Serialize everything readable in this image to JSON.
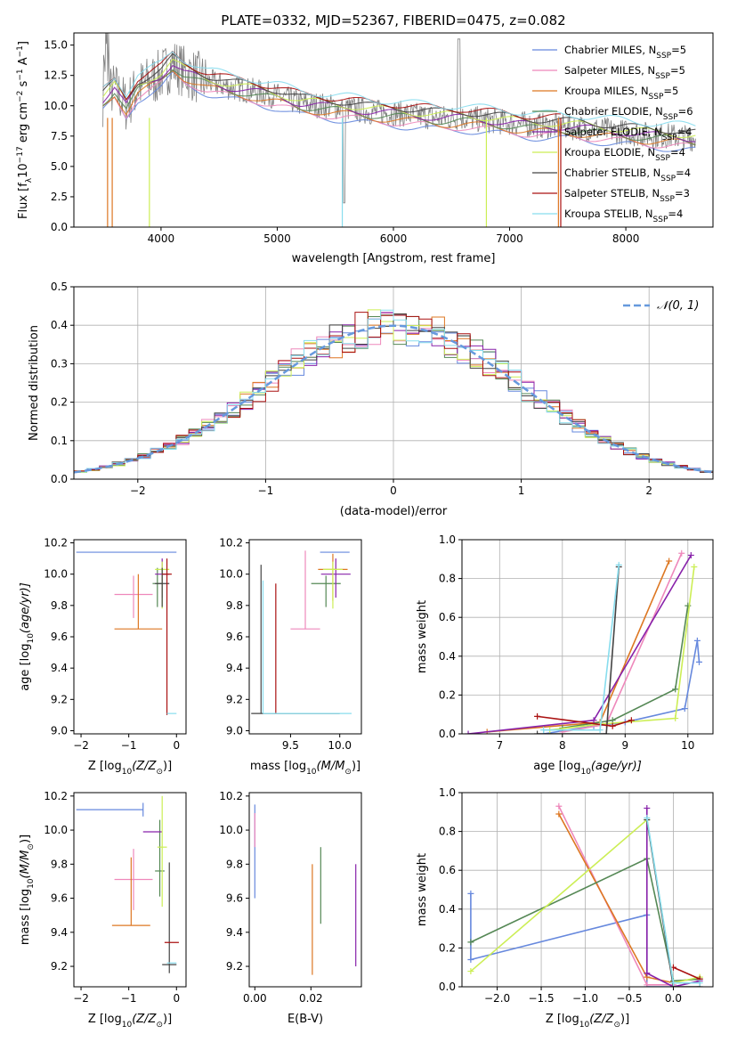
{
  "figure": {
    "title": "PLATE=0332, MJD=52367, FIBERID=0475, z=0.082"
  },
  "series_colors": [
    "#6688dd",
    "#ee88bb",
    "#dd7722",
    "#558855",
    "#8822aa",
    "#ccee55",
    "#444444",
    "#aa1111",
    "#88ddee"
  ],
  "chart_data": [
    {
      "id": "spectrum",
      "type": "line",
      "title": "PLATE=0332, MJD=52367, FIBERID=0475, z=0.082",
      "xlabel": "wavelength [Angstrom, rest frame]",
      "ylabel": "Flux [f",
      "ylabel_parts": [
        "Flux [f",
        "λ",
        "10",
        "−17",
        " erg cm",
        "−2",
        " s",
        "−1",
        " A",
        "−1",
        "]"
      ],
      "xlim": [
        3250,
        8750
      ],
      "ylim": [
        0,
        16
      ],
      "xticks": [
        4000,
        5000,
        6000,
        7000,
        8000
      ],
      "yticks": [
        0.0,
        2.5,
        5.0,
        7.5,
        10.0,
        12.5,
        15.0
      ],
      "ytick_labels": [
        "0.0",
        "2.5",
        "5.0",
        "7.5",
        "10.0",
        "12.5",
        "15.0"
      ],
      "legend_position": "top-right",
      "legend": [
        {
          "label": "Chabrier MILES, N",
          "sub": "SSP",
          "suffix": "=5"
        },
        {
          "label": "Salpeter MILES, N",
          "sub": "SSP",
          "suffix": "=5"
        },
        {
          "label": "Kroupa MILES, N",
          "sub": "SSP",
          "suffix": "=5"
        },
        {
          "label": "Chabrier ELODIE, N",
          "sub": "SSP",
          "suffix": "=6"
        },
        {
          "label": "Salpeter ELODIE, N",
          "sub": "SSP",
          "suffix": "=4"
        },
        {
          "label": "Kroupa ELODIE, N",
          "sub": "SSP",
          "suffix": "=4"
        },
        {
          "label": "Chabrier STELIB, N",
          "sub": "SSP",
          "suffix": "=4"
        },
        {
          "label": "Salpeter STELIB, N",
          "sub": "SSP",
          "suffix": "=3"
        },
        {
          "label": "Kroupa STELIB, N",
          "sub": "SSP",
          "suffix": "=4"
        }
      ],
      "data_series": {
        "x": [
          3500,
          3600,
          3700,
          3800,
          3900,
          4000,
          4100,
          4200,
          4400,
          4600,
          4800,
          5000,
          5200,
          5400,
          5600,
          5800,
          6000,
          6200,
          6400,
          6600,
          6800,
          7000,
          7200,
          7400,
          7600,
          7800,
          8000,
          8200,
          8400,
          8600
        ],
        "y": [
          10.5,
          11.5,
          10.0,
          11.5,
          12.0,
          12.5,
          13.5,
          12.8,
          12.0,
          11.5,
          11.2,
          10.8,
          10.2,
          10.0,
          9.8,
          9.5,
          9.4,
          9.2,
          9.0,
          9.0,
          8.8,
          8.6,
          8.4,
          8.3,
          8.2,
          8.0,
          7.8,
          7.6,
          7.5,
          7.3
        ]
      }
    },
    {
      "id": "residuals",
      "type": "line",
      "xlabel": "(data-model)/error",
      "ylabel": "Normed distribution",
      "xlim": [
        -2.5,
        2.5
      ],
      "ylim": [
        0,
        0.5
      ],
      "xticks": [
        -2,
        -1,
        0,
        1,
        2
      ],
      "xtick_labels": [
        "−2",
        "−1",
        "0",
        "1",
        "2"
      ],
      "yticks": [
        0.0,
        0.1,
        0.2,
        0.3,
        0.4,
        0.5
      ],
      "ytick_labels": [
        "0.0",
        "0.1",
        "0.2",
        "0.3",
        "0.4",
        "0.5"
      ],
      "grid": true,
      "legend_position": "top-right",
      "legend_label": "𝒩(0, 1)",
      "gaussian": {
        "mean": 0,
        "sigma": 1
      }
    },
    {
      "id": "age-vs-Z",
      "type": "scatter",
      "xlabel": "Z [log",
      "xlabel_parts": [
        "Z [log",
        "10",
        "(Z/Z",
        "⊙",
        ")]"
      ],
      "ylabel_parts": [
        "age  [log",
        "10",
        "(age/yr)]"
      ],
      "xlim": [
        -2.15,
        0.2
      ],
      "ylim": [
        8.98,
        10.22
      ],
      "xticks": [
        -2,
        -1,
        0
      ],
      "xtick_labels": [
        "−2",
        "−1",
        "0"
      ],
      "yticks": [
        9.0,
        9.2,
        9.4,
        9.6,
        9.8,
        10.0,
        10.2
      ],
      "ytick_labels": [
        "9.0",
        "9.2",
        "9.4",
        "9.6",
        "9.8",
        "10.0",
        "10.2"
      ],
      "points": [
        {
          "x": -0.9,
          "y": 10.14,
          "xerr": [
            1.2,
            0.9
          ],
          "yerr": [
            0,
            0
          ]
        },
        {
          "x": -0.9,
          "y": 9.87,
          "xerr": [
            0.4,
            0.4
          ],
          "yerr": [
            0.15,
            0.12
          ]
        },
        {
          "x": -0.8,
          "y": 9.65,
          "xerr": [
            0.5,
            0.5
          ],
          "yerr": [
            0,
            0.35
          ]
        },
        {
          "x": -0.4,
          "y": 9.94,
          "xerr": [
            0.1,
            0.1
          ],
          "yerr": [
            0.15,
            0.1
          ]
        },
        {
          "x": -0.3,
          "y": 10.0,
          "xerr": [
            0.15,
            0.15
          ],
          "yerr": [
            0.15,
            0.1
          ]
        },
        {
          "x": -0.3,
          "y": 10.03,
          "xerr": [
            0.15,
            0.15
          ],
          "yerr": [
            0.25,
            0.05
          ]
        },
        {
          "x": -0.3,
          "y": 9.94,
          "xerr": [
            0.15,
            0.15
          ],
          "yerr": [
            0.15,
            0.1
          ]
        },
        {
          "x": -0.2,
          "y": 10.0,
          "xerr": [
            0.1,
            0.1
          ],
          "yerr": [
            0.9,
            0.1
          ]
        },
        {
          "x": -0.1,
          "y": 9.11,
          "xerr": [
            0.1,
            0.1
          ],
          "yerr": [
            0,
            0
          ]
        }
      ]
    },
    {
      "id": "age-vs-mass",
      "type": "scatter",
      "xlabel_parts": [
        "mass [log",
        "10",
        "(M/M",
        "⊙",
        ")]"
      ],
      "xlim": [
        9.08,
        10.22
      ],
      "ylim": [
        8.98,
        10.22
      ],
      "xticks": [
        9.5,
        10.0
      ],
      "xtick_labels": [
        "9.5",
        "10.0"
      ],
      "yticks": [
        9.0,
        9.2,
        9.4,
        9.6,
        9.8,
        10.0,
        10.2
      ],
      "ytick_labels": [
        "9.0",
        "9.2",
        "9.4",
        "9.6",
        "9.8",
        "10.0",
        "10.2"
      ],
      "points": [
        {
          "x": 10.0,
          "y": 10.14,
          "xerr": [
            0.2,
            0.1
          ],
          "yerr": [
            0,
            0
          ]
        },
        {
          "x": 9.65,
          "y": 9.65,
          "xerr": [
            0.15,
            0.15
          ],
          "yerr": [
            0,
            0.5
          ]
        },
        {
          "x": 9.93,
          "y": 10.03,
          "xerr": [
            0.15,
            0.15
          ],
          "yerr": [
            0.2,
            0.1
          ]
        },
        {
          "x": 9.86,
          "y": 9.94,
          "xerr": [
            0.15,
            0.15
          ],
          "yerr": [
            0.15,
            0.05
          ]
        },
        {
          "x": 9.96,
          "y": 10.0,
          "xerr": [
            0.15,
            0.15
          ],
          "yerr": [
            0.15,
            0.1
          ]
        },
        {
          "x": 9.93,
          "y": 10.03,
          "xerr": [
            0.1,
            0.1
          ],
          "yerr": [
            0.25,
            0.05
          ]
        },
        {
          "x": 9.2,
          "y": 9.11,
          "xerr": [
            0.1,
            0.8
          ],
          "yerr": [
            0,
            0.95
          ]
        },
        {
          "x": 9.35,
          "y": 9.11,
          "xerr": [
            0,
            0
          ],
          "yerr": [
            0,
            0.83
          ]
        },
        {
          "x": 9.22,
          "y": 9.11,
          "xerr": [
            0,
            0.9
          ],
          "yerr": [
            0,
            0.85
          ]
        }
      ]
    },
    {
      "id": "weight-vs-age",
      "type": "line",
      "xlabel_parts": [
        "age  [log",
        "10",
        "(age/yr)]"
      ],
      "ylabel": "mass weight",
      "xlim": [
        6.4,
        10.4
      ],
      "ylim": [
        0,
        1
      ],
      "xticks": [
        7,
        8,
        9,
        10
      ],
      "xtick_labels": [
        "7",
        "8",
        "9",
        "10"
      ],
      "yticks": [
        0.0,
        0.2,
        0.4,
        0.6,
        0.8,
        1.0
      ],
      "ytick_labels": [
        "0.0",
        "0.2",
        "0.4",
        "0.6",
        "0.8",
        "1.0"
      ],
      "grid": true,
      "series": [
        {
          "x": [
            7.7,
            8.5,
            9.0,
            9.95,
            10.15,
            10.18
          ],
          "y": [
            0.0,
            0.04,
            0.06,
            0.13,
            0.48,
            0.37
          ]
        },
        {
          "x": [
            8.0,
            8.7,
            9.9
          ],
          "y": [
            0.01,
            0.05,
            0.93
          ]
        },
        {
          "x": [
            6.8,
            8.6,
            9.7
          ],
          "y": [
            0.01,
            0.06,
            0.89
          ]
        },
        {
          "x": [
            8.0,
            8.8,
            9.8,
            10.0
          ],
          "y": [
            0.03,
            0.07,
            0.23,
            0.66
          ]
        },
        {
          "x": [
            6.5,
            8.5,
            10.05
          ],
          "y": [
            0.0,
            0.07,
            0.92
          ]
        },
        {
          "x": [
            7.8,
            8.6,
            9.8,
            10.1
          ],
          "y": [
            0.02,
            0.05,
            0.08,
            0.86
          ]
        },
        {
          "x": [
            7.6,
            8.7,
            8.9
          ],
          "y": [
            0.0,
            0.0,
            0.86
          ]
        },
        {
          "x": [
            7.6,
            8.8,
            9.1
          ],
          "y": [
            0.09,
            0.04,
            0.07
          ]
        },
        {
          "x": [
            7.7,
            8.6,
            8.9
          ],
          "y": [
            0.02,
            0.02,
            0.87
          ]
        }
      ]
    },
    {
      "id": "mass-vs-Z",
      "type": "scatter",
      "xlabel_parts": [
        "Z [log",
        "10",
        "(Z/Z",
        "⊙",
        ")]"
      ],
      "ylabel_parts": [
        "mass [log",
        "10",
        "(M/M",
        "⊙",
        ")]"
      ],
      "xlim": [
        -2.15,
        0.2
      ],
      "ylim": [
        9.08,
        10.22
      ],
      "xticks": [
        -2,
        -1,
        0
      ],
      "xtick_labels": [
        "−2",
        "−1",
        "0"
      ],
      "yticks": [
        9.2,
        9.4,
        9.6,
        9.8,
        10.0,
        10.2
      ],
      "ytick_labels": [
        "9.2",
        "9.4",
        "9.6",
        "9.8",
        "10.0",
        "10.2"
      ],
      "points": [
        {
          "x": -0.7,
          "y": 10.12,
          "xerr": [
            1.4,
            0.0
          ],
          "yerr": [
            0.04,
            0.04
          ]
        },
        {
          "x": -0.9,
          "y": 9.71,
          "xerr": [
            0.4,
            0.4
          ],
          "yerr": [
            0.18,
            0.18
          ]
        },
        {
          "x": -0.95,
          "y": 9.44,
          "xerr": [
            0.4,
            0.4
          ],
          "yerr": [
            0,
            0.4
          ]
        },
        {
          "x": -0.35,
          "y": 9.76,
          "xerr": [
            0.1,
            0.1
          ],
          "yerr": [
            0.15,
            0.3
          ]
        },
        {
          "x": -0.5,
          "y": 9.99,
          "xerr": [
            0.2,
            0.2
          ],
          "yerr": [
            0,
            0
          ]
        },
        {
          "x": -0.3,
          "y": 9.9,
          "xerr": [
            0.1,
            0.1
          ],
          "yerr": [
            0.35,
            0.3
          ]
        },
        {
          "x": -0.15,
          "y": 9.21,
          "xerr": [
            0.15,
            0.15
          ],
          "yerr": [
            0.05,
            0.6
          ]
        },
        {
          "x": -0.1,
          "y": 9.34,
          "xerr": [
            0.15,
            0.15
          ],
          "yerr": [
            0,
            0
          ]
        },
        {
          "x": -0.1,
          "y": 9.22,
          "xerr": [
            0.1,
            0.1
          ],
          "yerr": [
            0,
            0
          ]
        }
      ]
    },
    {
      "id": "mass-vs-EBV",
      "type": "scatter",
      "xlabel": "E(B-V)",
      "xlim": [
        -0.002,
        0.038
      ],
      "ylim": [
        9.08,
        10.22
      ],
      "xticks": [
        0.0,
        0.02
      ],
      "xtick_labels": [
        "0.00",
        "0.02"
      ],
      "yticks": [
        9.2,
        9.4,
        9.6,
        9.8,
        10.0,
        10.2
      ],
      "ytick_labels": [
        "9.2",
        "9.4",
        "9.6",
        "9.8",
        "10.0",
        "10.2"
      ],
      "points": [
        {
          "x": 0.0,
          "y": 10.05,
          "xerr": [
            0,
            0
          ],
          "yerr": [
            0.45,
            0.1
          ]
        },
        {
          "x": 0.0,
          "y": 10.0,
          "xerr": [
            0,
            0
          ],
          "yerr": [
            0.1,
            0.1
          ]
        },
        {
          "x": 0.0205,
          "y": 9.5,
          "xerr": [
            0,
            0
          ],
          "yerr": [
            0.35,
            0.3
          ]
        },
        {
          "x": 0.0235,
          "y": 9.65,
          "xerr": [
            0,
            0
          ],
          "yerr": [
            0.2,
            0.25
          ]
        },
        {
          "x": 0.036,
          "y": 9.5,
          "xerr": [
            0,
            0
          ],
          "yerr": [
            0.3,
            0.3
          ]
        }
      ]
    },
    {
      "id": "weight-vs-Z",
      "type": "line",
      "xlabel_parts": [
        "Z [log",
        "10",
        "(Z/Z",
        "⊙",
        ")]"
      ],
      "ylabel": "mass weight",
      "xlim": [
        -2.4,
        0.45
      ],
      "ylim": [
        0,
        1
      ],
      "xticks": [
        -2.0,
        -1.5,
        -1.0,
        -0.5,
        0.0
      ],
      "xtick_labels": [
        "−2.0",
        "−1.5",
        "−1.0",
        "−0.5",
        "0.0"
      ],
      "yticks": [
        0.0,
        0.2,
        0.4,
        0.6,
        0.8,
        1.0
      ],
      "ytick_labels": [
        "0.0",
        "0.2",
        "0.4",
        "0.6",
        "0.8",
        "1.0"
      ],
      "grid": true,
      "series": [
        {
          "x": [
            -2.3,
            -2.3,
            -0.3,
            -0.3,
            0.0
          ],
          "y": [
            0.48,
            0.14,
            0.37,
            0.0,
            0.0
          ]
        },
        {
          "x": [
            -1.3,
            -0.3,
            0.0
          ],
          "y": [
            0.93,
            0.01,
            0.01
          ]
        },
        {
          "x": [
            -1.3,
            -0.3,
            0.0
          ],
          "y": [
            0.89,
            0.05,
            0.02
          ]
        },
        {
          "x": [
            -2.3,
            -0.3,
            0.0,
            0.3
          ],
          "y": [
            0.23,
            0.66,
            0.03,
            0.04
          ]
        },
        {
          "x": [
            -0.3,
            -0.3,
            0.0,
            0.3
          ],
          "y": [
            0.92,
            0.07,
            0.0,
            0.03
          ]
        },
        {
          "x": [
            -2.3,
            -0.3,
            0.0,
            0.3
          ],
          "y": [
            0.08,
            0.86,
            0.02,
            0.05
          ]
        },
        {
          "x": [
            -0.3,
            0.0,
            0.3
          ],
          "y": [
            0.86,
            0.0,
            0.0
          ]
        },
        {
          "x": [
            0.0,
            0.3
          ],
          "y": [
            0.1,
            0.04
          ]
        },
        {
          "x": [
            -0.3,
            0.0,
            0.3
          ],
          "y": [
            0.87,
            0.02,
            0.02
          ]
        }
      ]
    }
  ]
}
